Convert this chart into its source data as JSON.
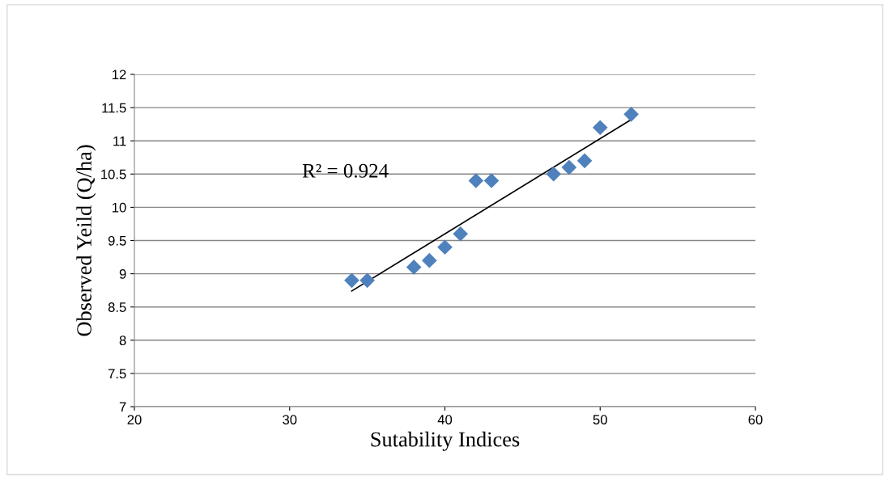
{
  "chart_data": {
    "type": "scatter",
    "xlabel": "Sutability Indices",
    "ylabel": "Observed Yeild (Q/ha)",
    "x": [
      34,
      35,
      38,
      39,
      40,
      41,
      42,
      43,
      47,
      48,
      49,
      50,
      52
    ],
    "series": [
      {
        "color": "#4f81bd",
        "marker": "diamond",
        "values": [
          8.9,
          8.9,
          9.1,
          9.2,
          9.4,
          9.6,
          10.4,
          10.4,
          10.5,
          10.6,
          10.7,
          11.2,
          11.4
        ]
      },
      {
        "type": "line",
        "color": "#000000",
        "x": [
          34,
          52
        ],
        "values": [
          8.74,
          11.32
        ]
      }
    ],
    "annotations": [
      "R² = 0.924"
    ],
    "xlim": [
      20,
      60
    ],
    "xticks": [
      20,
      30,
      40,
      50,
      60
    ],
    "ylim": [
      7,
      12
    ],
    "yticks": [
      7,
      7.5,
      8,
      8.5,
      9,
      9.5,
      10,
      10.5,
      11,
      11.5,
      12
    ],
    "grid": "y"
  }
}
